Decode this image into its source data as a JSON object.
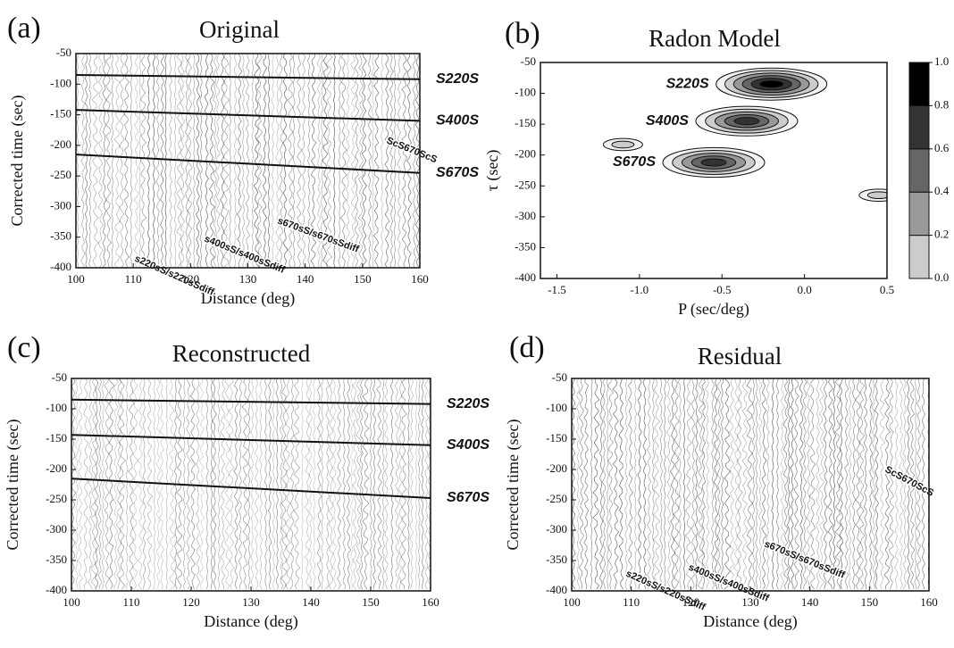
{
  "chart_data": [
    {
      "type": "seismogram",
      "panel_label": "(a)",
      "title": "Original",
      "xlabel": "Distance (deg)",
      "ylabel": "Corrected time (sec)",
      "xlim": [
        100,
        160
      ],
      "ylim": [
        -400,
        -50
      ],
      "xticks": [
        100,
        110,
        120,
        130,
        140,
        150,
        160
      ],
      "yticks": [
        -50,
        -100,
        -150,
        -200,
        -250,
        -300,
        -350,
        -400
      ],
      "series": [
        {
          "name": "S220S",
          "color": "#111111",
          "x": [
            100,
            160
          ],
          "values": [
            -85,
            -92
          ]
        },
        {
          "name": "S400S",
          "color": "#111111",
          "x": [
            100,
            160
          ],
          "values": [
            -142,
            -160
          ]
        },
        {
          "name": "S670S",
          "color": "#111111",
          "x": [
            100,
            160
          ],
          "values": [
            -215,
            -245
          ]
        }
      ],
      "annotations": [
        "ScS670ScS",
        "s670sS/s670sSdiff",
        "s400sS/s400sSdiff",
        "s220sS/s220sSdiff"
      ]
    },
    {
      "type": "contour",
      "panel_label": "(b)",
      "title": "Radon Model",
      "xlabel": "P (sec/deg)",
      "ylabel": "τ (sec)",
      "xlim": [
        -1.6,
        0.5
      ],
      "ylim": [
        -400,
        -50
      ],
      "xticks": [
        -1.5,
        {
          "value": -1,
          "label": "-1.0"
        },
        -0.5,
        {
          "value": 0,
          "label": "0.0"
        },
        0.5
      ],
      "yticks": [
        -50,
        -100,
        -150,
        -200,
        -250,
        -300,
        -350,
        -400
      ],
      "clim": [
        0,
        1
      ],
      "cticks": [
        {
          "value": 0,
          "label": "0.0"
        },
        0.2,
        0.4,
        0.6,
        0.8,
        {
          "value": 1,
          "label": "1.0"
        }
      ],
      "peaks": {
        "x": [
          -0.2,
          -0.35,
          -0.55,
          -1.1,
          0.45
        ],
        "values": [
          -85,
          -145,
          -212,
          -183,
          -265
        ],
        "amplitude": [
          1.0,
          0.9,
          0.9,
          0.2,
          0.2
        ],
        "labels": [
          "S220S",
          "S400S",
          "S670S",
          null,
          null
        ]
      }
    },
    {
      "type": "seismogram",
      "panel_label": "(c)",
      "title": "Reconstructed",
      "xlabel": "Distance (deg)",
      "ylabel": "Corrected time (sec)",
      "xlim": [
        100,
        160
      ],
      "ylim": [
        -400,
        -50
      ],
      "xticks": [
        100,
        110,
        120,
        130,
        140,
        150,
        160
      ],
      "yticks": [
        -50,
        -100,
        -150,
        -200,
        -250,
        -300,
        -350,
        -400
      ],
      "series": [
        {
          "name": "S220S",
          "color": "#111111",
          "x": [
            100,
            160
          ],
          "values": [
            -85,
            -92
          ]
        },
        {
          "name": "S400S",
          "color": "#111111",
          "x": [
            100,
            160
          ],
          "values": [
            -143,
            -160
          ]
        },
        {
          "name": "S670S",
          "color": "#111111",
          "x": [
            100,
            160
          ],
          "values": [
            -215,
            -247
          ]
        }
      ],
      "annotations": []
    },
    {
      "type": "seismogram",
      "panel_label": "(d)",
      "title": "Residual",
      "xlabel": "Distance (deg)",
      "ylabel": "Corrected time (sec)",
      "xlim": [
        100,
        160
      ],
      "ylim": [
        -400,
        -50
      ],
      "xticks": [
        100,
        110,
        120,
        130,
        140,
        150,
        160
      ],
      "yticks": [
        -50,
        -100,
        -150,
        -200,
        -250,
        -300,
        -350,
        -400
      ],
      "series": [],
      "annotations": [
        "ScS670ScS",
        "s670sS/s670sSdiff",
        "s400sS/s400sSdiff",
        "s220sS/s220sSdiff"
      ]
    }
  ]
}
